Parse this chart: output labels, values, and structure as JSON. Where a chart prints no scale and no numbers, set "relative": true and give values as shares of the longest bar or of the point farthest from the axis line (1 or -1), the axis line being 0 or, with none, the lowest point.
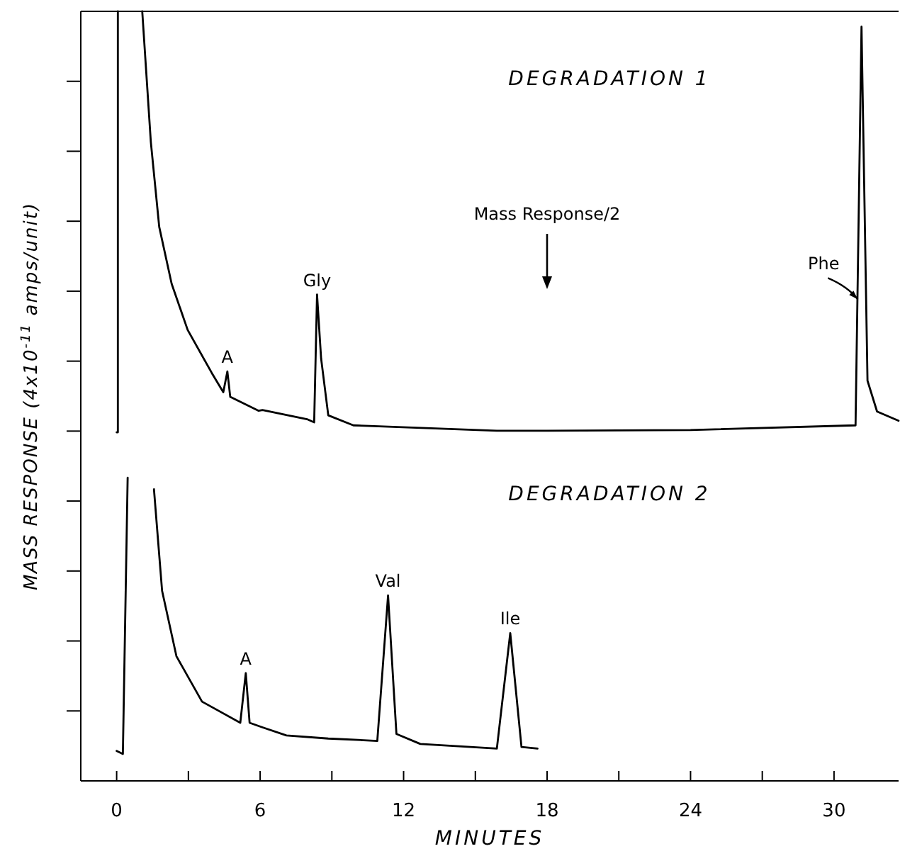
{
  "chart_data": {
    "type": "line",
    "relative": true,
    "xlabel": "MINUTES",
    "ylabel": "MASS RESPONSE (4x10$^{-11}$ amps/unit)",
    "xlim": [
      -1.5,
      32.7
    ],
    "xticks": [
      0,
      {
        "value": 3,
        "label": null
      },
      6,
      {
        "value": 9,
        "label": null
      },
      12,
      {
        "value": 15,
        "label": null
      },
      18,
      {
        "value": 21,
        "label": null
      },
      24,
      {
        "value": 27,
        "label": null
      },
      30
    ],
    "series": [
      {
        "color": "#000000",
        "x": [
          0,
          0.05,
          0.05,
          null,
          1.07,
          1.43,
          1.78,
          2.3,
          2.97,
          3.98,
          4.46,
          4.63,
          4.75,
          5.94,
          6.1,
          7.96,
          8.26,
          8.38,
          8.55,
          8.85,
          9.9,
          15.9,
          18,
          24,
          30.9,
          31.15,
          31.4,
          31.8,
          32.7
        ],
        "values": [
          0.453,
          0.453,
          1,
          null,
          1,
          0.83,
          0.72,
          0.646,
          0.586,
          0.53,
          0.505,
          0.532,
          0.499,
          0.481,
          0.482,
          0.47,
          0.466,
          0.632,
          0.549,
          0.475,
          0.462,
          0.455,
          0.455,
          0.456,
          0.462,
          0.98,
          0.52,
          0.48,
          0.468
        ]
      },
      {
        "color": "#000000",
        "x": [
          0,
          0.26,
          0.46,
          null,
          1.56,
          1.9,
          2.5,
          3.57,
          5.17,
          5.4,
          5.56,
          6.06,
          7.1,
          8.85,
          10.9,
          11.35,
          11.7,
          12.7,
          15.9,
          16.46,
          16.93,
          17.6
        ],
        "values": [
          0.039,
          0.035,
          0.394,
          null,
          0.379,
          0.247,
          0.162,
          0.103,
          0.0755,
          0.14,
          0.0755,
          0.07,
          0.059,
          0.055,
          0.052,
          0.241,
          0.061,
          0.048,
          0.042,
          0.192,
          0.044,
          0.042
        ]
      }
    ],
    "annotations": [
      "DEGRADATION 1",
      "DEGRADATION 2",
      "Mass Response/2",
      {
        "text": "A",
        "x": 4.63,
        "y": 0.532
      },
      {
        "text": "Gly",
        "x": 8.38,
        "y": 0.632
      },
      {
        "text": "Phe",
        "x": 31.05,
        "y": 0.624
      },
      {
        "text": "A",
        "x": 5.4,
        "y": 0.14
      },
      {
        "text": "Val",
        "x": 11.35,
        "y": 0.241
      },
      {
        "text": "Ile",
        "x": 16.46,
        "y": 0.192
      }
    ]
  }
}
